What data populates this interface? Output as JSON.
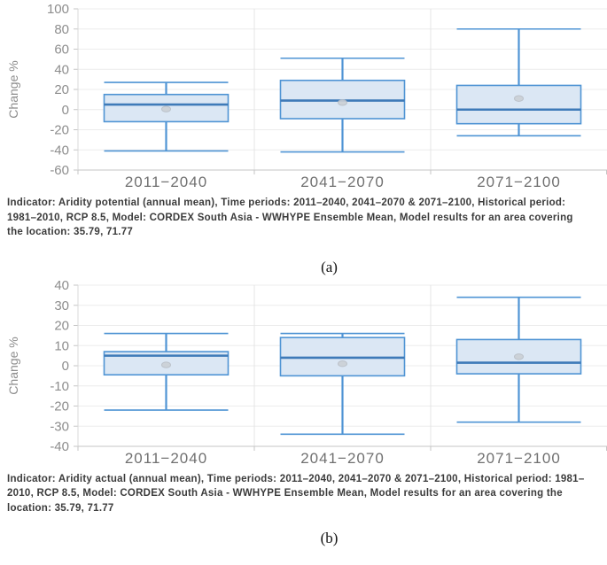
{
  "figures": [
    {
      "sublabel": "(a)",
      "caption": "Indicator: Aridity potential (annual mean), Time periods: 2011–2040, 2041–2070 & 2071–2100, Historical period: 1981–2010, RCP 8.5, Model: CORDEX South Asia - WWHYPE Ensemble Mean, Model results for an area covering the location: 35.79, 71.77"
    },
    {
      "sublabel": "(b)",
      "caption": "Indicator: Aridity actual (annual mean), Time periods: 2011–2040, 2041–2070 & 2071–2100, Historical period: 1981–2010, RCP 8.5, Model: CORDEX South Asia - WWHYPE Ensemble Mean, Model results for an area covering the location: 35.79, 71.77"
    }
  ],
  "chart_data": [
    {
      "type": "boxplot",
      "title": "",
      "xlabel": "",
      "ylabel": "Change %",
      "categories": [
        "2011−2040",
        "2041−2070",
        "2071−2100"
      ],
      "ylim": [
        -60,
        100
      ],
      "ytick_step": 20,
      "grid": true,
      "legend": "none",
      "boxes": [
        {
          "category": "2011−2040",
          "low": -41,
          "q1": -12,
          "median": 5,
          "q3": 15,
          "high": 27,
          "mean": 0.5
        },
        {
          "category": "2041−2070",
          "low": -42,
          "q1": -9,
          "median": 9,
          "q3": 29,
          "high": 51,
          "mean": 7
        },
        {
          "category": "2071−2100",
          "low": -26,
          "q1": -14,
          "median": 0,
          "q3": 24,
          "high": 80,
          "mean": 11
        }
      ]
    },
    {
      "type": "boxplot",
      "title": "",
      "xlabel": "",
      "ylabel": "Change %",
      "categories": [
        "2011−2040",
        "2041−2070",
        "2071−2100"
      ],
      "ylim": [
        -40,
        40
      ],
      "ytick_step": 10,
      "grid": true,
      "legend": "none",
      "boxes": [
        {
          "category": "2011−2040",
          "low": -22,
          "q1": -4.5,
          "median": 5,
          "q3": 7,
          "high": 16,
          "mean": 0.4
        },
        {
          "category": "2041−2070",
          "low": -34,
          "q1": -5,
          "median": 4,
          "q3": 14,
          "high": 16,
          "mean": 1
        },
        {
          "category": "2071−2100",
          "low": -28,
          "q1": -4,
          "median": 1.5,
          "q3": 13,
          "high": 34,
          "mean": 4.5
        }
      ]
    }
  ],
  "style": {
    "box_fill": "#dbe7f4",
    "box_stroke": "#4f94d4",
    "median_stroke": "#3e7ab8",
    "mean_fill": "#cbd0d6",
    "mean_stroke": "#b9bfc6",
    "grid_color": "#ececec",
    "divider_color": "#e4e4e4",
    "axis_color": "#c6c6c6",
    "yaxis_line_color": "#d9d9d9",
    "tick_label_color": "#8d8d8d",
    "xlabel_color": "#707070",
    "ylabel_color": "#8d8d8d"
  }
}
